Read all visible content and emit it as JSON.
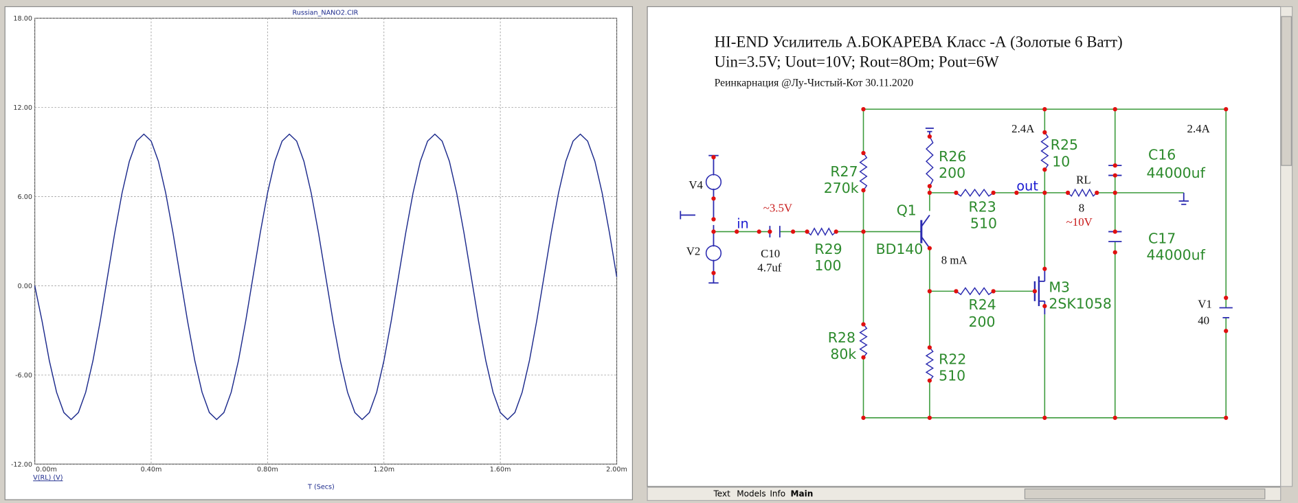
{
  "chart_data": {
    "type": "line",
    "title": "Russian_NANO2.CIR",
    "x_label": "T (Secs)",
    "x": [
      0,
      0.025,
      0.05,
      0.075,
      0.1,
      0.125,
      0.15,
      0.175,
      0.2,
      0.225,
      0.25,
      0.275,
      0.3,
      0.325,
      0.35,
      0.375,
      0.4,
      0.425,
      0.45,
      0.475,
      0.5,
      0.525,
      0.55,
      0.575,
      0.6,
      0.625,
      0.65,
      0.675,
      0.7,
      0.725,
      0.75,
      0.775,
      0.8,
      0.825,
      0.85,
      0.875,
      0.9,
      0.925,
      0.95,
      0.975,
      1,
      1.025,
      1.05,
      1.075,
      1.1,
      1.125,
      1.15,
      1.175,
      1.2,
      1.225,
      1.25,
      1.275,
      1.3,
      1.325,
      1.35,
      1.375,
      1.4,
      1.425,
      1.45,
      1.475,
      1.5,
      1.525,
      1.55,
      1.575,
      1.6,
      1.625,
      1.65,
      1.675,
      1.7,
      1.725,
      1.75,
      1.775,
      1.8,
      1.825,
      1.85,
      1.875,
      1.9,
      1.925,
      1.95,
      1.975,
      2
    ],
    "series": [
      {
        "name": "V(RL) (V)",
        "color": "#1c2a8c",
        "values": [
          0,
          -2.37,
          -5.04,
          -7.17,
          -8.53,
          -9.0,
          -8.53,
          -7.17,
          -5.04,
          -2.37,
          0.6,
          3.57,
          6.24,
          8.37,
          9.73,
          10.2,
          9.73,
          8.37,
          6.24,
          3.57,
          0.6,
          -2.37,
          -5.04,
          -7.17,
          -8.53,
          -9.0,
          -8.53,
          -7.17,
          -5.04,
          -2.37,
          0.6,
          3.57,
          6.24,
          8.37,
          9.73,
          10.2,
          9.73,
          8.37,
          6.24,
          3.57,
          0.6,
          -2.37,
          -5.04,
          -7.17,
          -8.53,
          -9.0,
          -8.53,
          -7.17,
          -5.04,
          -2.37,
          0.6,
          3.57,
          6.24,
          8.37,
          9.73,
          10.2,
          9.73,
          8.37,
          6.24,
          3.57,
          0.6,
          -2.37,
          -5.04,
          -7.17,
          -8.53,
          -9.0,
          -8.53,
          -7.17,
          -5.04,
          -2.37,
          0.6,
          3.57,
          6.24,
          8.37,
          9.73,
          10.2,
          9.73,
          8.37,
          6.24,
          3.57,
          0.6
        ]
      }
    ],
    "xlim": [
      0,
      2
    ],
    "xticks": [
      {
        "value": 0,
        "label": "0.00m"
      },
      {
        "value": 0.4,
        "label": "0.40m"
      },
      {
        "value": 0.8,
        "label": "0.80m"
      },
      {
        "value": 1.2,
        "label": "1.20m"
      },
      {
        "value": 1.6,
        "label": "1.60m"
      },
      {
        "value": 2,
        "label": "2.00m"
      }
    ],
    "ylim": [
      -12,
      18
    ],
    "yticks": [
      {
        "value": -12,
        "label": "-12.00"
      },
      {
        "value": -6,
        "label": "-6.00"
      },
      {
        "value": 0,
        "label": "0.00"
      },
      {
        "value": 6,
        "label": "6.00"
      },
      {
        "value": 12,
        "label": "12.00"
      },
      {
        "value": 18,
        "label": "18.00"
      }
    ],
    "grid": true
  },
  "schematic": {
    "title_lines": [
      "HI-END Усилитель А.БОКАРЕВА Класс -А (Золотые 6 Ватт)",
      "Uin=3.5V; Uout=10V; Rout=8Om; Pout=6W",
      "Реинкарнация @Лу-Чистый-Кот 30.11.2020"
    ],
    "labels": [
      "R27",
      "270k",
      "R26",
      "200",
      "R23",
      "510",
      "out",
      "R25",
      "10",
      "RL",
      "8",
      "~10V",
      "C16",
      "44000uf",
      "C17",
      "44000uf",
      "Q1",
      "BD140",
      "8 mA",
      "M3",
      "2SK1058",
      "R24",
      "200",
      "R28",
      "80k",
      "R22",
      "510",
      "R29",
      "100",
      "C10",
      "4.7uf",
      "~3.5V",
      "in",
      "V4",
      "V2",
      "V1",
      "40",
      "2.4A",
      "2.4A"
    ]
  },
  "tabs": [
    "Text",
    "Models",
    "Info",
    "Main"
  ]
}
